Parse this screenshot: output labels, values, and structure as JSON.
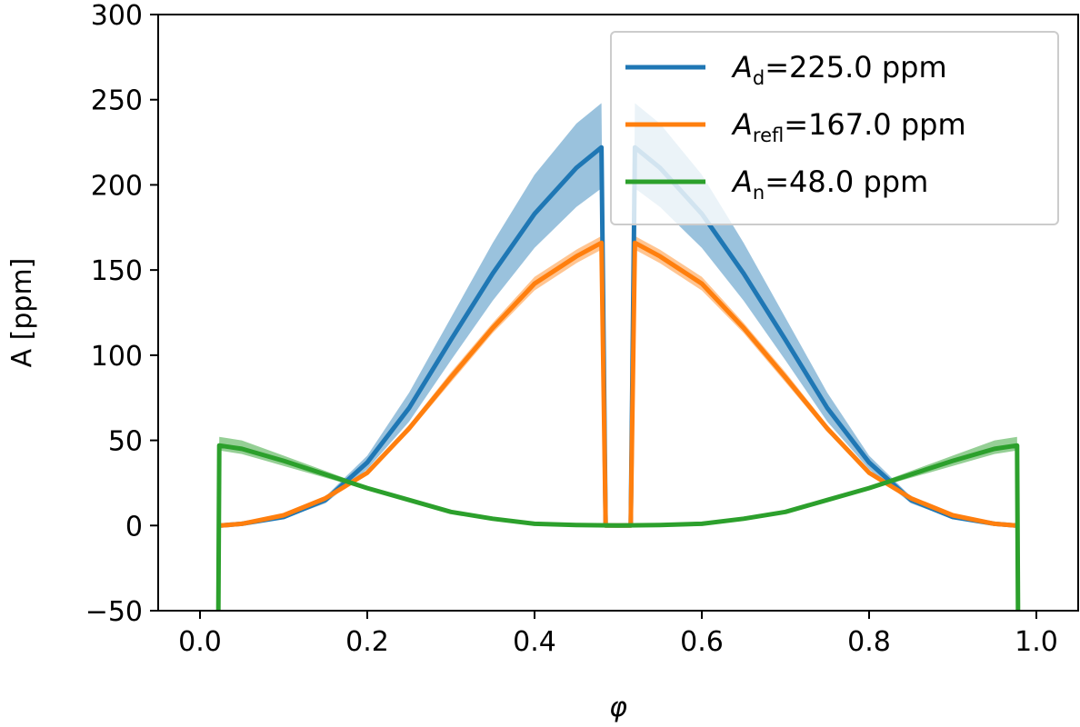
{
  "chart_data": {
    "type": "line",
    "xlabel": "φ",
    "ylabel": "A [ppm]",
    "xlim": [
      -0.05,
      1.05
    ],
    "ylim": [
      -50,
      300
    ],
    "xticks": [
      0.0,
      0.2,
      0.4,
      0.6,
      0.8,
      1.0
    ],
    "xtick_labels": [
      "0.0",
      "0.2",
      "0.4",
      "0.6",
      "0.8",
      "1.0"
    ],
    "yticks": [
      -50,
      0,
      50,
      100,
      150,
      200,
      250,
      300
    ],
    "ytick_labels": [
      "−50",
      "0",
      "50",
      "100",
      "150",
      "200",
      "250",
      "300"
    ],
    "grid": false,
    "legend_position": "top-right",
    "series": [
      {
        "key": "Ad",
        "legend": {
          "sym": "A",
          "sub": "d",
          "rest": "=225.0 ppm"
        },
        "color": "#1f77b4",
        "band_opacity": 0.45,
        "x": [
          0.025,
          0.05,
          0.1,
          0.15,
          0.2,
          0.25,
          0.3,
          0.35,
          0.4,
          0.45,
          0.48,
          0.485,
          0.515,
          0.52,
          0.55,
          0.6,
          0.65,
          0.7,
          0.75,
          0.8,
          0.85,
          0.9,
          0.95,
          0.975
        ],
        "y": [
          0,
          1,
          5,
          15,
          37,
          69,
          109,
          148,
          183,
          210,
          222,
          0,
          0,
          222,
          210,
          183,
          148,
          109,
          69,
          37,
          15,
          5,
          1,
          0
        ],
        "y_low": [
          0,
          1,
          4,
          13,
          33,
          61,
          97,
          132,
          163,
          187,
          198,
          0,
          0,
          198,
          187,
          163,
          132,
          97,
          61,
          33,
          13,
          4,
          1,
          0
        ],
        "y_high": [
          0,
          1,
          6,
          17,
          41,
          78,
          122,
          166,
          206,
          236,
          248,
          0,
          0,
          248,
          236,
          206,
          166,
          122,
          78,
          41,
          17,
          6,
          1,
          0
        ]
      },
      {
        "key": "Arefl",
        "legend": {
          "sym": "A",
          "sub": "refl",
          "rest": "=167.0 ppm"
        },
        "color": "#ff7f0e",
        "band_opacity": 0.45,
        "x": [
          0.025,
          0.05,
          0.1,
          0.15,
          0.2,
          0.25,
          0.3,
          0.35,
          0.4,
          0.45,
          0.48,
          0.485,
          0.515,
          0.52,
          0.55,
          0.6,
          0.65,
          0.7,
          0.75,
          0.8,
          0.85,
          0.9,
          0.95,
          0.975
        ],
        "y": [
          0,
          1,
          6,
          16,
          31,
          57,
          87,
          116,
          142,
          158,
          166,
          0,
          0,
          166,
          158,
          142,
          116,
          87,
          57,
          31,
          16,
          6,
          1,
          0
        ],
        "y_low": [
          0,
          1,
          6,
          15,
          30,
          55,
          84,
          113,
          138,
          154,
          162,
          0,
          0,
          162,
          154,
          138,
          113,
          84,
          55,
          30,
          15,
          6,
          1,
          0
        ],
        "y_high": [
          0,
          1,
          7,
          17,
          32,
          59,
          90,
          119,
          146,
          162,
          170,
          0,
          0,
          170,
          162,
          146,
          119,
          90,
          59,
          32,
          17,
          7,
          1,
          0
        ]
      },
      {
        "key": "An",
        "legend": {
          "sym": "A",
          "sub": "n",
          "rest": "=48.0 ppm"
        },
        "color": "#2ca02c",
        "band_opacity": 0.5,
        "x": [
          0.022,
          0.023,
          0.05,
          0.1,
          0.15,
          0.2,
          0.25,
          0.3,
          0.35,
          0.4,
          0.45,
          0.5,
          0.55,
          0.6,
          0.65,
          0.7,
          0.75,
          0.8,
          0.85,
          0.9,
          0.95,
          0.977,
          0.978
        ],
        "y": [
          -50,
          47,
          45,
          38,
          30,
          22,
          15,
          8,
          4,
          1,
          0.3,
          0,
          0.3,
          1,
          4,
          8,
          15,
          22,
          30,
          38,
          45,
          47,
          -50
        ],
        "y_low": [
          -50,
          44,
          42,
          35,
          28,
          21,
          14,
          7,
          3.5,
          0.9,
          0.2,
          0,
          0.2,
          0.9,
          3.5,
          7,
          14,
          21,
          28,
          35,
          42,
          44,
          -50
        ],
        "y_high": [
          -50,
          52,
          50,
          41,
          32,
          23,
          16,
          9,
          4.5,
          1.1,
          0.4,
          0,
          0.4,
          1.1,
          4.5,
          9,
          16,
          23,
          32,
          41,
          50,
          52,
          -50
        ]
      }
    ]
  }
}
